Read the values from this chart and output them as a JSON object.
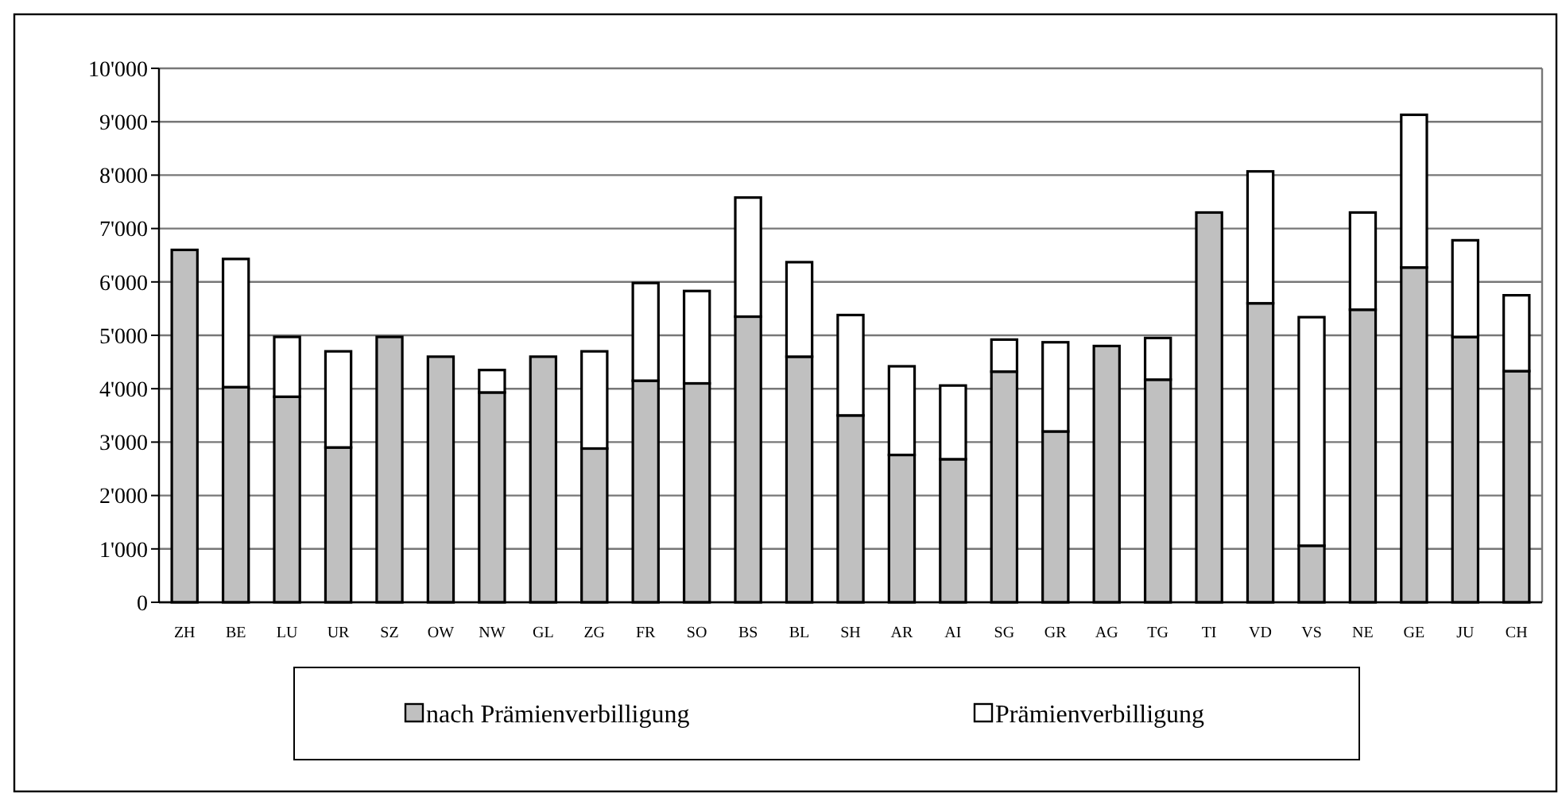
{
  "chart_data": {
    "type": "bar",
    "stacked": true,
    "categories": [
      "ZH",
      "BE",
      "LU",
      "UR",
      "SZ",
      "OW",
      "NW",
      "GL",
      "ZG",
      "FR",
      "SO",
      "BS",
      "BL",
      "SH",
      "AR",
      "AI",
      "SG",
      "GR",
      "AG",
      "TG",
      "TI",
      "VD",
      "VS",
      "NE",
      "GE",
      "JU",
      "CH"
    ],
    "series": [
      {
        "name": "nach Prämienverbilligung",
        "color": "#c0c0c0",
        "values": [
          6600,
          4030,
          3850,
          2900,
          4970,
          4600,
          3930,
          4600,
          2880,
          4150,
          4100,
          5350,
          4600,
          3500,
          2760,
          2680,
          4320,
          3200,
          4800,
          4170,
          7300,
          5600,
          1060,
          5480,
          6270,
          4970,
          4330
        ]
      },
      {
        "name": "Prämienverbilligung",
        "color": "#ffffff",
        "values": [
          null,
          2400,
          1120,
          1800,
          null,
          null,
          420,
          null,
          1820,
          1830,
          1730,
          2230,
          1770,
          1880,
          1660,
          1380,
          600,
          1670,
          null,
          780,
          null,
          2470,
          4280,
          1820,
          2860,
          1810,
          1420
        ]
      }
    ],
    "ylim": [
      0,
      10000
    ],
    "yticks": [
      0,
      {
        "value": 1000,
        "label": "1'000"
      },
      {
        "value": 2000,
        "label": "2'000"
      },
      {
        "value": 3000,
        "label": "3'000"
      },
      {
        "value": 4000,
        "label": "4'000"
      },
      {
        "value": 5000,
        "label": "5'000"
      },
      {
        "value": 6000,
        "label": "6'000"
      },
      {
        "value": 7000,
        "label": "7'000"
      },
      {
        "value": 8000,
        "label": "8'000"
      },
      {
        "value": 9000,
        "label": "9'000"
      },
      {
        "value": 10000,
        "label": "10'000"
      }
    ],
    "grid": "y",
    "legend": "bottom"
  }
}
